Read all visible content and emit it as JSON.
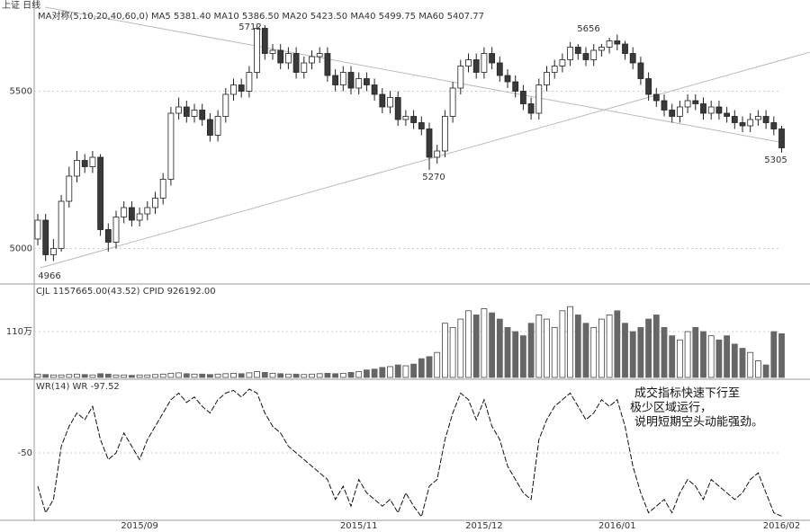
{
  "chart_data": [
    {
      "type": "candlestick",
      "header": "上证 日线",
      "subtitle": "MA对称(5,10,20,40,60,0)  MA5 5381.40  MA10 5386.50  MA20 5423.50  MA40 5499.75  MA60 5407.77",
      "annotations": [
        "5712",
        "5656",
        "5270",
        "5305",
        "4966"
      ],
      "categories": [
        null,
        null,
        null,
        null,
        null,
        null,
        null,
        null,
        null,
        null,
        null,
        null,
        null,
        "2015/09",
        null,
        null,
        null,
        null,
        null,
        null,
        null,
        null,
        null,
        null,
        null,
        null,
        null,
        null,
        null,
        null,
        null,
        null,
        null,
        null,
        null,
        null,
        null,
        null,
        null,
        null,
        null,
        "2015/11",
        null,
        null,
        null,
        null,
        null,
        null,
        null,
        null,
        null,
        null,
        null,
        null,
        null,
        null,
        null,
        "2015/12",
        null,
        null,
        null,
        null,
        null,
        null,
        null,
        null,
        null,
        null,
        null,
        null,
        null,
        null,
        null,
        null,
        "2016/01",
        null,
        null,
        null,
        null,
        null,
        null,
        null,
        null,
        null,
        null,
        null,
        null,
        null,
        null,
        null,
        null,
        null,
        null,
        null,
        null,
        "2016/02"
      ],
      "open": [
        5030,
        5090,
        4980,
        5000,
        5150,
        5230,
        5280,
        5260,
        5290,
        5060,
        5020,
        5100,
        5130,
        5090,
        5110,
        5130,
        5160,
        5220,
        5430,
        5450,
        5420,
        5440,
        5410,
        5360,
        5420,
        5490,
        5520,
        5500,
        5560,
        5700,
        5620,
        5630,
        5590,
        5620,
        5560,
        5590,
        5610,
        5620,
        5550,
        5520,
        5560,
        5510,
        5540,
        5520,
        5490,
        5450,
        5480,
        5410,
        5420,
        5400,
        5380,
        5290,
        5310,
        5420,
        5510,
        5580,
        5600,
        5560,
        5620,
        5590,
        5550,
        5530,
        5500,
        5460,
        5430,
        5520,
        5560,
        5580,
        5600,
        5640,
        5620,
        5600,
        5630,
        5640,
        5660,
        5650,
        5620,
        5590,
        5540,
        5490,
        5470,
        5440,
        5420,
        5450,
        5470,
        5460,
        5430,
        5450,
        5430,
        5420,
        5400,
        5390,
        5410,
        5420,
        5400,
        5380
      ],
      "high": [
        5110,
        5110,
        5030,
        5170,
        5260,
        5310,
        5300,
        5310,
        5300,
        5080,
        5120,
        5150,
        5150,
        5130,
        5150,
        5180,
        5240,
        5450,
        5480,
        5470,
        5460,
        5460,
        5430,
        5440,
        5510,
        5540,
        5540,
        5580,
        5712,
        5710,
        5650,
        5650,
        5640,
        5640,
        5610,
        5630,
        5640,
        5640,
        5570,
        5580,
        5580,
        5560,
        5560,
        5540,
        5510,
        5500,
        5500,
        5440,
        5440,
        5420,
        5400,
        5330,
        5440,
        5530,
        5600,
        5620,
        5620,
        5640,
        5640,
        5610,
        5570,
        5550,
        5520,
        5480,
        5540,
        5580,
        5600,
        5620,
        5656,
        5650,
        5640,
        5650,
        5650,
        5670,
        5680,
        5660,
        5640,
        5610,
        5560,
        5510,
        5490,
        5460,
        5470,
        5490,
        5490,
        5480,
        5470,
        5470,
        5450,
        5440,
        5420,
        5430,
        5440,
        5440,
        5420,
        5390
      ],
      "low": [
        5010,
        4960,
        4960,
        4990,
        5130,
        5210,
        5240,
        5240,
        5040,
        4990,
        5000,
        5080,
        5070,
        5070,
        5090,
        5110,
        5140,
        5200,
        5410,
        5400,
        5400,
        5390,
        5340,
        5340,
        5400,
        5470,
        5480,
        5480,
        5540,
        5600,
        5600,
        5570,
        5570,
        5540,
        5540,
        5570,
        5590,
        5530,
        5500,
        5500,
        5490,
        5490,
        5500,
        5470,
        5430,
        5430,
        5390,
        5390,
        5380,
        5360,
        5250,
        5270,
        5290,
        5400,
        5490,
        5560,
        5540,
        5540,
        5570,
        5530,
        5510,
        5480,
        5440,
        5410,
        5410,
        5500,
        5540,
        5560,
        5580,
        5600,
        5580,
        5580,
        5610,
        5620,
        5630,
        5600,
        5570,
        5520,
        5470,
        5450,
        5420,
        5400,
        5400,
        5430,
        5440,
        5410,
        5410,
        5410,
        5400,
        5380,
        5370,
        5370,
        5390,
        5380,
        5360,
        5305
      ],
      "close": [
        5090,
        4980,
        5000,
        5150,
        5230,
        5280,
        5260,
        5290,
        5060,
        5020,
        5100,
        5130,
        5090,
        5110,
        5130,
        5160,
        5220,
        5430,
        5450,
        5420,
        5440,
        5410,
        5360,
        5420,
        5490,
        5520,
        5500,
        5560,
        5700,
        5620,
        5630,
        5590,
        5620,
        5560,
        5590,
        5610,
        5620,
        5550,
        5520,
        5560,
        5510,
        5540,
        5520,
        5490,
        5450,
        5480,
        5410,
        5420,
        5400,
        5380,
        5290,
        5310,
        5420,
        5510,
        5580,
        5600,
        5560,
        5620,
        5590,
        5550,
        5530,
        5500,
        5460,
        5430,
        5520,
        5560,
        5580,
        5600,
        5640,
        5620,
        5600,
        5630,
        5640,
        5660,
        5650,
        5620,
        5590,
        5540,
        5490,
        5470,
        5440,
        5420,
        5450,
        5470,
        5460,
        5430,
        5450,
        5430,
        5420,
        5400,
        5390,
        5410,
        5420,
        5400,
        5380,
        5320
      ],
      "up_color": "#ffffff",
      "down_color": "#3a3a3a",
      "ylim": [
        4890,
        5790
      ],
      "yticks": [
        5000,
        5500
      ]
    },
    {
      "type": "bar",
      "title": "CJL  1157665.00(43.52)   CPID  926192.00",
      "values": [
        8,
        7,
        6,
        6,
        7,
        8,
        7,
        6,
        9,
        8,
        6,
        6,
        5,
        6,
        6,
        7,
        8,
        10,
        11,
        9,
        8,
        8,
        7,
        8,
        9,
        10,
        9,
        11,
        14,
        12,
        10,
        9,
        8,
        8,
        7,
        8,
        9,
        10,
        9,
        10,
        12,
        14,
        18,
        20,
        24,
        26,
        30,
        28,
        32,
        45,
        50,
        60,
        130,
        120,
        140,
        160,
        150,
        165,
        155,
        140,
        120,
        110,
        100,
        130,
        150,
        140,
        120,
        160,
        170,
        150,
        130,
        120,
        140,
        150,
        160,
        130,
        110,
        120,
        140,
        150,
        120,
        100,
        90,
        110,
        120,
        110,
        100,
        90,
        100,
        80,
        70,
        60,
        40,
        30,
        110,
        105
      ],
      "color": "#666666",
      "ylim": [
        0,
        220
      ],
      "yticks": [
        {
          "value": 110,
          "label": "110万"
        }
      ]
    },
    {
      "type": "line",
      "title": "WR(14)  WR  -97.52",
      "values": [
        -75,
        -95,
        -85,
        -45,
        -30,
        -20,
        -25,
        -15,
        -40,
        -55,
        -50,
        -35,
        -45,
        -55,
        -40,
        -30,
        -20,
        -10,
        -5,
        -12,
        -8,
        -15,
        -20,
        -10,
        -5,
        -3,
        -8,
        -2,
        -5,
        -20,
        -30,
        -35,
        -45,
        -50,
        -55,
        -60,
        -65,
        -70,
        -85,
        -75,
        -90,
        -70,
        -80,
        -85,
        -90,
        -85,
        -95,
        -80,
        -90,
        -98,
        -75,
        -70,
        -40,
        -20,
        -5,
        -10,
        -25,
        -10,
        -30,
        -40,
        -60,
        -70,
        -80,
        -85,
        -40,
        -25,
        -15,
        -10,
        -5,
        -15,
        -25,
        -20,
        -10,
        -15,
        -10,
        -30,
        -60,
        -80,
        -95,
        -90,
        -85,
        -95,
        -80,
        -70,
        -75,
        -85,
        -70,
        -75,
        -80,
        -85,
        -80,
        -70,
        -65,
        -80,
        -95,
        -97.52
      ],
      "color": "#111111",
      "note": [
        "成交指标快速下行至",
        "极少区域运行，",
        "说明短期空头动能强劲。"
      ],
      "ylim": [
        -100,
        0
      ],
      "yticks": [
        -50
      ]
    }
  ]
}
